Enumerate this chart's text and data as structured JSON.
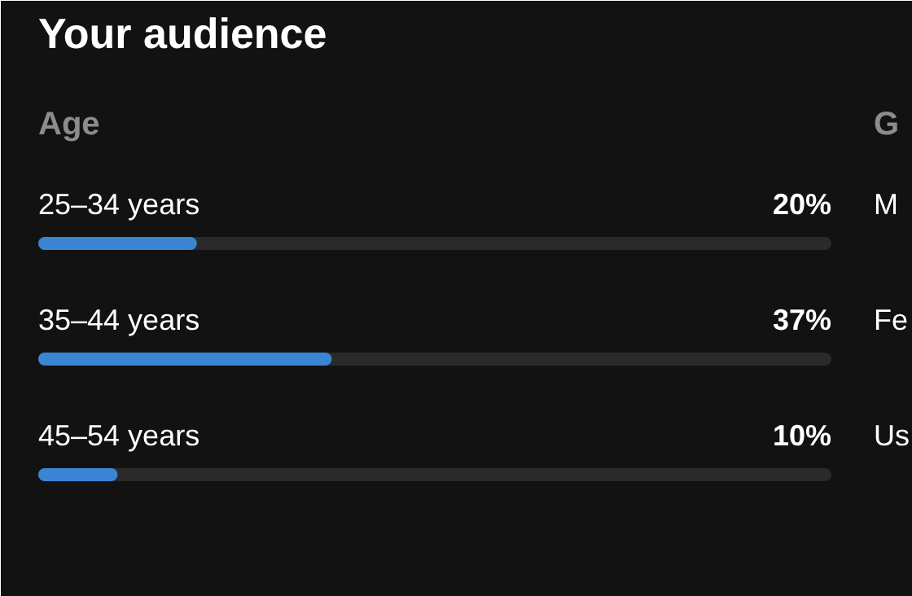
{
  "chart_data": {
    "type": "bar",
    "orientation": "horizontal",
    "title": "Your audience",
    "subtitle": "Age",
    "categories": [
      "25–34 years",
      "35–44 years",
      "45–54 years"
    ],
    "values": [
      20,
      37,
      10
    ],
    "value_labels": [
      "20%",
      "37%",
      "10%"
    ],
    "color": "#3a86d4",
    "xlim": [
      0,
      100
    ],
    "tick_labels": false,
    "grid": false,
    "annotations": [
      "G",
      "M",
      "Fe",
      "Us"
    ]
  }
}
